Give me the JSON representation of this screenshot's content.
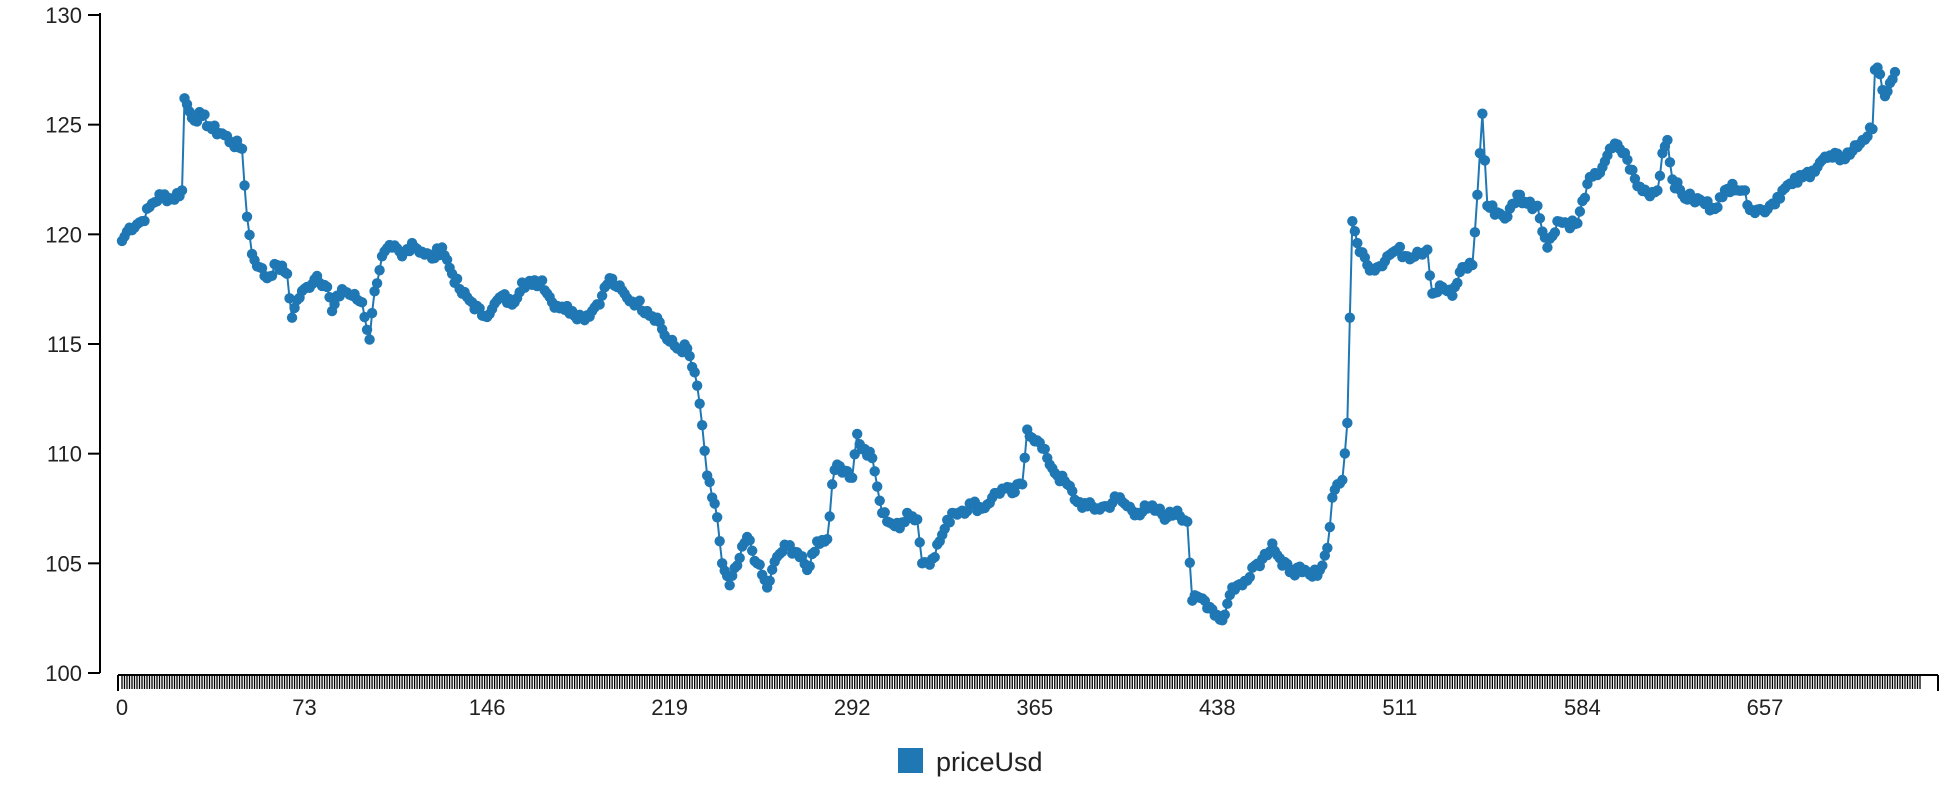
{
  "chart_data": {
    "type": "line",
    "title": "",
    "xlabel": "",
    "ylabel": "",
    "xlim": [
      0,
      719
    ],
    "ylim": [
      100,
      130
    ],
    "x_ticks": [
      "0",
      "73",
      "146",
      "219",
      "292",
      "365",
      "438",
      "511",
      "584",
      "657"
    ],
    "y_ticks": [
      "100",
      "105",
      "110",
      "115",
      "120",
      "125",
      "130"
    ],
    "grid": false,
    "markers": true,
    "legend_position": "bottom-center",
    "color": "#1f77b4",
    "series": [
      {
        "name": "priceUsd",
        "anchors": [
          [
            0,
            119.7
          ],
          [
            3,
            120.3
          ],
          [
            8,
            120.6
          ],
          [
            12,
            121.4
          ],
          [
            16,
            121.8
          ],
          [
            20,
            121.6
          ],
          [
            24,
            122.0
          ],
          [
            25,
            126.2
          ],
          [
            28,
            125.3
          ],
          [
            32,
            125.4
          ],
          [
            36,
            124.8
          ],
          [
            40,
            124.6
          ],
          [
            44,
            124.2
          ],
          [
            48,
            123.9
          ],
          [
            50,
            120.8
          ],
          [
            52,
            119.1
          ],
          [
            55,
            118.5
          ],
          [
            58,
            118.0
          ],
          [
            62,
            118.6
          ],
          [
            66,
            118.2
          ],
          [
            68,
            116.2
          ],
          [
            70,
            117.0
          ],
          [
            74,
            117.6
          ],
          [
            78,
            118.1
          ],
          [
            82,
            117.6
          ],
          [
            84,
            116.5
          ],
          [
            88,
            117.5
          ],
          [
            92,
            117.2
          ],
          [
            96,
            116.9
          ],
          [
            99,
            115.2
          ],
          [
            101,
            117.4
          ],
          [
            104,
            119.0
          ],
          [
            108,
            119.4
          ],
          [
            112,
            119.0
          ],
          [
            116,
            119.6
          ],
          [
            120,
            119.2
          ],
          [
            124,
            118.9
          ],
          [
            128,
            119.4
          ],
          [
            132,
            118.2
          ],
          [
            136,
            117.3
          ],
          [
            140,
            116.9
          ],
          [
            144,
            116.3
          ],
          [
            148,
            116.6
          ],
          [
            152,
            117.2
          ],
          [
            156,
            116.8
          ],
          [
            160,
            117.8
          ],
          [
            164,
            117.7
          ],
          [
            168,
            117.9
          ],
          [
            172,
            116.9
          ],
          [
            176,
            116.7
          ],
          [
            180,
            116.5
          ],
          [
            184,
            116.2
          ],
          [
            188,
            116.5
          ],
          [
            192,
            117.2
          ],
          [
            195,
            118.0
          ],
          [
            198,
            117.6
          ],
          [
            202,
            117.1
          ],
          [
            206,
            116.9
          ],
          [
            210,
            116.5
          ],
          [
            214,
            116.2
          ],
          [
            218,
            115.2
          ],
          [
            222,
            114.8
          ],
          [
            226,
            114.8
          ],
          [
            230,
            113.1
          ],
          [
            232,
            111.3
          ],
          [
            234,
            109.0
          ],
          [
            236,
            108.0
          ],
          [
            238,
            107.1
          ],
          [
            240,
            105.0
          ],
          [
            243,
            104.0
          ],
          [
            246,
            104.9
          ],
          [
            250,
            106.2
          ],
          [
            254,
            105.0
          ],
          [
            258,
            103.9
          ],
          [
            262,
            105.3
          ],
          [
            266,
            105.8
          ],
          [
            270,
            105.5
          ],
          [
            274,
            104.7
          ],
          [
            278,
            106.0
          ],
          [
            282,
            106.1
          ],
          [
            284,
            108.6
          ],
          [
            286,
            109.5
          ],
          [
            290,
            109.2
          ],
          [
            292,
            108.9
          ],
          [
            294,
            110.9
          ],
          [
            296,
            110.2
          ],
          [
            300,
            109.8
          ],
          [
            302,
            108.5
          ],
          [
            304,
            107.3
          ],
          [
            308,
            106.8
          ],
          [
            311,
            106.6
          ],
          [
            314,
            107.3
          ],
          [
            318,
            107.0
          ],
          [
            320,
            105.0
          ],
          [
            324,
            105.2
          ],
          [
            328,
            106.3
          ],
          [
            332,
            107.3
          ],
          [
            336,
            107.4
          ],
          [
            340,
            107.7
          ],
          [
            344,
            107.5
          ],
          [
            348,
            108.0
          ],
          [
            352,
            108.4
          ],
          [
            356,
            108.2
          ],
          [
            360,
            108.6
          ],
          [
            362,
            111.1
          ],
          [
            366,
            110.6
          ],
          [
            370,
            109.8
          ],
          [
            374,
            109.0
          ],
          [
            378,
            108.6
          ],
          [
            382,
            107.8
          ],
          [
            386,
            107.6
          ],
          [
            390,
            107.5
          ],
          [
            394,
            107.6
          ],
          [
            398,
            108.0
          ],
          [
            402,
            107.6
          ],
          [
            406,
            107.3
          ],
          [
            410,
            107.5
          ],
          [
            414,
            107.4
          ],
          [
            418,
            107.1
          ],
          [
            422,
            107.4
          ],
          [
            426,
            106.9
          ],
          [
            428,
            103.3
          ],
          [
            432,
            103.4
          ],
          [
            436,
            102.9
          ],
          [
            440,
            102.4
          ],
          [
            444,
            103.9
          ],
          [
            448,
            104.0
          ],
          [
            452,
            104.8
          ],
          [
            456,
            105.2
          ],
          [
            460,
            105.9
          ],
          [
            464,
            104.9
          ],
          [
            468,
            104.7
          ],
          [
            472,
            104.6
          ],
          [
            476,
            104.4
          ],
          [
            480,
            104.9
          ],
          [
            482,
            105.7
          ],
          [
            484,
            108.0
          ],
          [
            486,
            108.6
          ],
          [
            488,
            108.8
          ],
          [
            490,
            111.4
          ],
          [
            492,
            120.6
          ],
          [
            494,
            119.6
          ],
          [
            498,
            118.6
          ],
          [
            502,
            118.5
          ],
          [
            506,
            119.0
          ],
          [
            510,
            119.3
          ],
          [
            514,
            119.0
          ],
          [
            518,
            119.2
          ],
          [
            522,
            119.3
          ],
          [
            524,
            117.3
          ],
          [
            528,
            117.6
          ],
          [
            532,
            117.2
          ],
          [
            536,
            118.5
          ],
          [
            540,
            118.6
          ],
          [
            542,
            121.8
          ],
          [
            544,
            125.5
          ],
          [
            546,
            121.3
          ],
          [
            550,
            121.0
          ],
          [
            554,
            120.8
          ],
          [
            558,
            121.8
          ],
          [
            562,
            121.4
          ],
          [
            566,
            121.3
          ],
          [
            570,
            119.4
          ],
          [
            574,
            120.6
          ],
          [
            578,
            120.5
          ],
          [
            582,
            120.5
          ],
          [
            586,
            122.3
          ],
          [
            590,
            122.7
          ],
          [
            594,
            123.6
          ],
          [
            598,
            124.1
          ],
          [
            602,
            123.4
          ],
          [
            606,
            122.2
          ],
          [
            610,
            121.9
          ],
          [
            614,
            122.0
          ],
          [
            616,
            123.7
          ],
          [
            618,
            124.3
          ],
          [
            620,
            122.5
          ],
          [
            624,
            121.8
          ],
          [
            628,
            121.6
          ],
          [
            632,
            121.5
          ],
          [
            636,
            121.2
          ],
          [
            640,
            121.7
          ],
          [
            644,
            122.3
          ],
          [
            648,
            122.0
          ],
          [
            652,
            121.1
          ],
          [
            656,
            121.1
          ],
          [
            660,
            121.4
          ],
          [
            664,
            122.0
          ],
          [
            668,
            122.3
          ],
          [
            672,
            122.6
          ],
          [
            676,
            122.9
          ],
          [
            680,
            123.4
          ],
          [
            684,
            123.5
          ],
          [
            688,
            123.5
          ],
          [
            692,
            123.8
          ],
          [
            696,
            124.3
          ],
          [
            700,
            124.8
          ],
          [
            701,
            127.5
          ],
          [
            703,
            127.3
          ],
          [
            705,
            126.3
          ],
          [
            707,
            126.9
          ],
          [
            709,
            127.4
          ]
        ]
      }
    ]
  }
}
